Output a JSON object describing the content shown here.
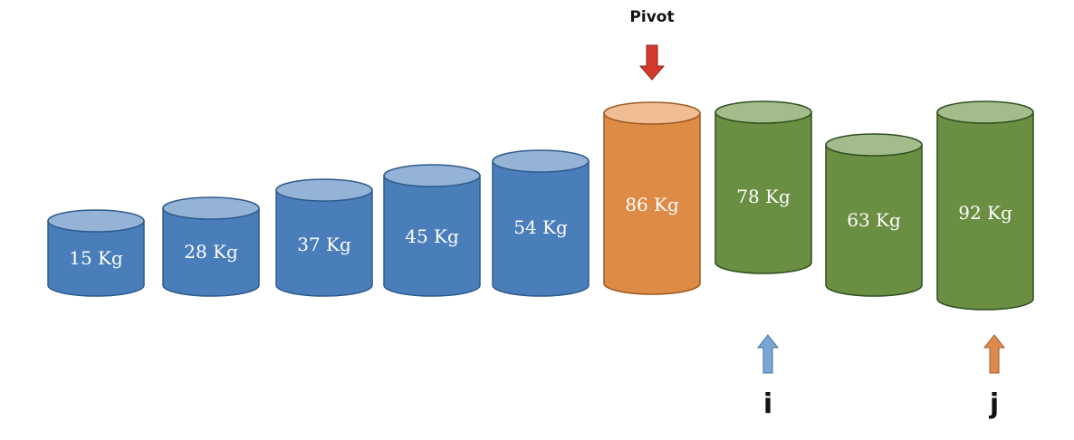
{
  "diagram": {
    "cylinders": [
      {
        "label": "15 Kg",
        "group": "sorted"
      },
      {
        "label": "28 Kg",
        "group": "sorted"
      },
      {
        "label": "37 Kg",
        "group": "sorted"
      },
      {
        "label": "45 Kg",
        "group": "sorted"
      },
      {
        "label": "54 Kg",
        "group": "sorted"
      },
      {
        "label": "86 Kg",
        "group": "pivot"
      },
      {
        "label": "78 Kg",
        "group": "unsorted"
      },
      {
        "label": "63 Kg",
        "group": "unsorted"
      },
      {
        "label": "92 Kg",
        "group": "unsorted"
      }
    ],
    "pivot_label": "Pivot",
    "i_label": "i",
    "j_label": "j"
  },
  "colors": {
    "sorted_body": "#4a7ebb",
    "sorted_top": "#95b3d7",
    "pivot_body": "#de8b46",
    "pivot_top": "#f1bd95",
    "unsorted_body": "#6a8e42",
    "unsorted_top": "#a2bc8b",
    "outline": "#2f4f1f",
    "pivot_arrow": "#d43a2c",
    "i_arrow": "#7aa6d6",
    "j_arrow": "#e0894c"
  }
}
